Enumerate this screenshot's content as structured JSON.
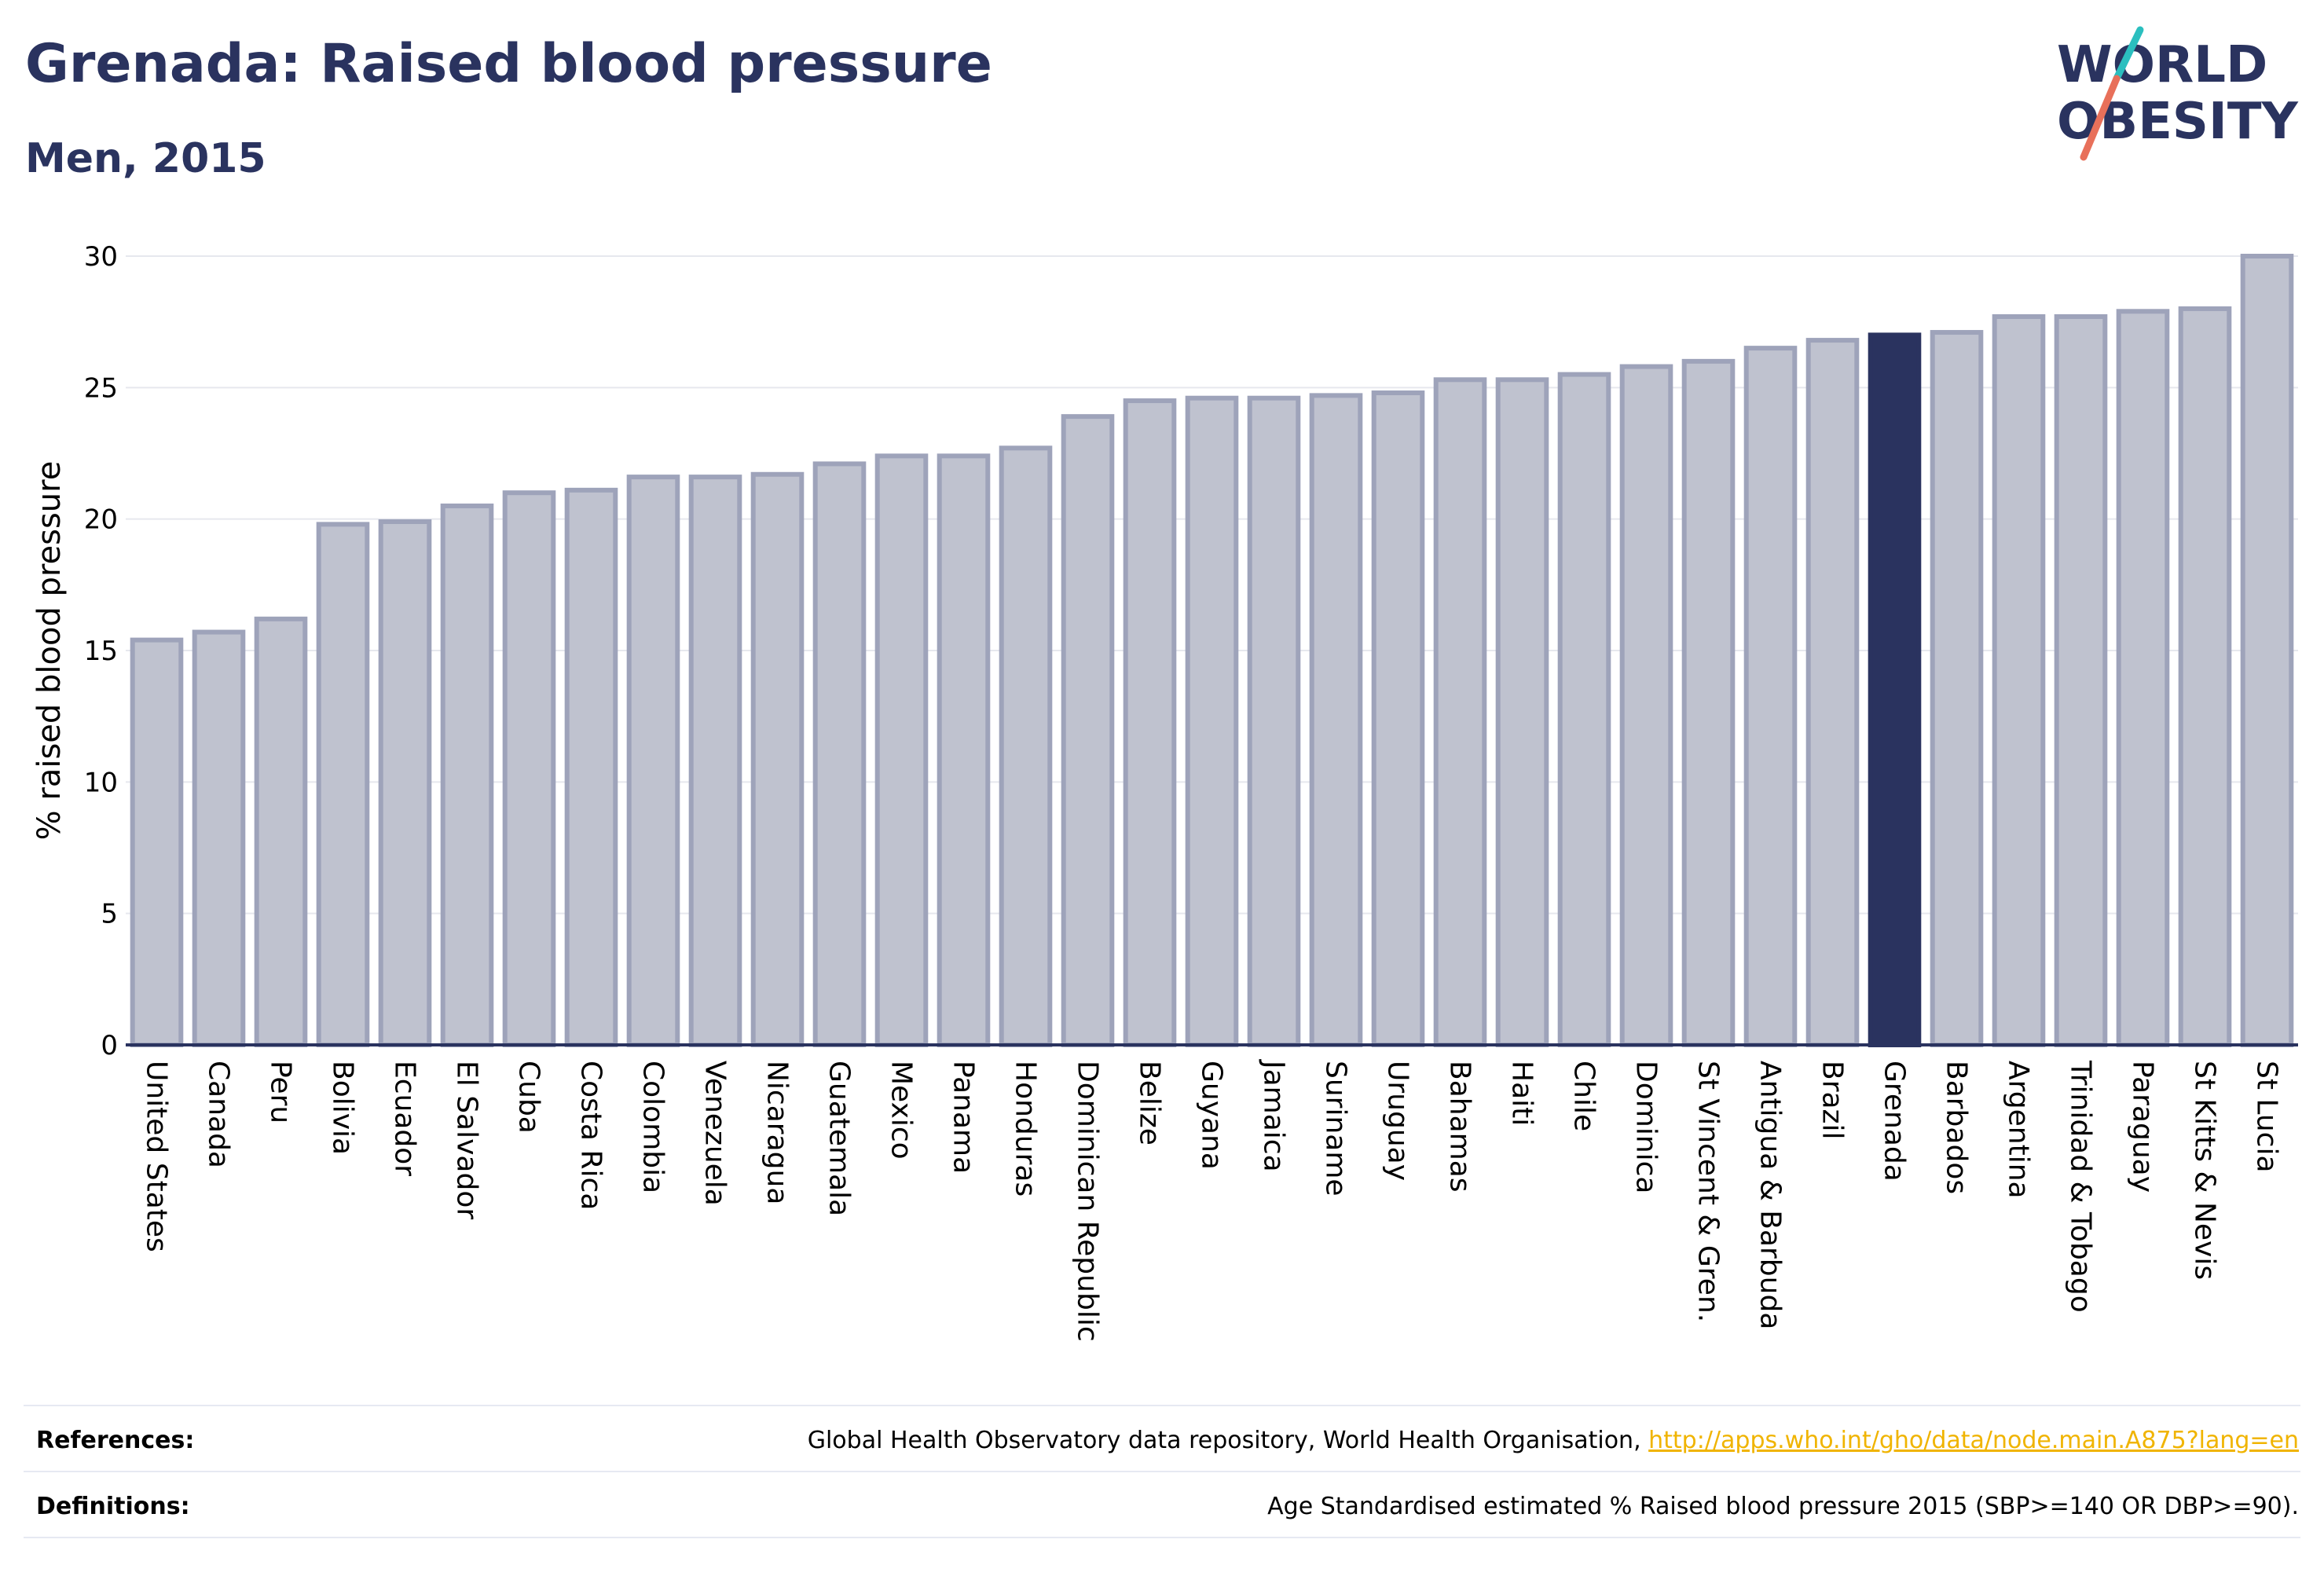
{
  "header": {
    "title": "Grenada: Raised blood pressure",
    "subtitle": "Men, 2015"
  },
  "logo": {
    "line1": "WORLD",
    "line2": "OBESITY",
    "accent_teal": "#2bbfbf",
    "accent_red": "#e8705a"
  },
  "chart_data": {
    "type": "bar",
    "title": "Grenada: Raised blood pressure",
    "subtitle": "Men, 2015",
    "xlabel": "",
    "ylabel": "% raised blood pressure",
    "ylim": [
      0,
      30
    ],
    "yticks": [
      0,
      5,
      10,
      15,
      20,
      25,
      30
    ],
    "grid": true,
    "legend": "none",
    "highlight": "Grenada",
    "colors": {
      "bar": "#bfc2cf",
      "bar_border": "#9ea3ba",
      "highlight": "#2a335f",
      "grid": "#e6e8ee",
      "axis": "#2a335f"
    },
    "categories": [
      "United States",
      "Canada",
      "Peru",
      "Bolivia",
      "Ecuador",
      "El Salvador",
      "Cuba",
      "Costa Rica",
      "Colombia",
      "Venezuela",
      "Nicaragua",
      "Guatemala",
      "Mexico",
      "Panama",
      "Honduras",
      "Dominican Republic",
      "Belize",
      "Guyana",
      "Jamaica",
      "Suriname",
      "Uruguay",
      "Bahamas",
      "Haiti",
      "Chile",
      "Dominica",
      "St Vincent & Gren.",
      "Antigua & Barbuda",
      "Brazil",
      "Grenada",
      "Barbados",
      "Argentina",
      "Trinidad & Tobago",
      "Paraguay",
      "St Kitts & Nevis",
      "St Lucia"
    ],
    "values": [
      15.4,
      15.7,
      16.2,
      19.8,
      19.9,
      20.5,
      21.0,
      21.1,
      21.6,
      21.6,
      21.7,
      22.1,
      22.4,
      22.4,
      22.7,
      23.9,
      24.5,
      24.6,
      24.6,
      24.7,
      24.8,
      25.3,
      25.3,
      25.5,
      25.8,
      26.0,
      26.5,
      26.8,
      27.0,
      27.1,
      27.7,
      27.7,
      27.9,
      28.0,
      30.0
    ]
  },
  "footer": {
    "references_label": "References:",
    "references_text": "Global Health Observatory data repository, World Health Organisation, ",
    "references_link": "http://apps.who.int/gho/data/node.main.A875?lang=en",
    "definitions_label": "Definitions:",
    "definitions_text": "Age Standardised estimated % Raised blood pressure 2015 (SBP>=140 OR DBP>=90)."
  }
}
